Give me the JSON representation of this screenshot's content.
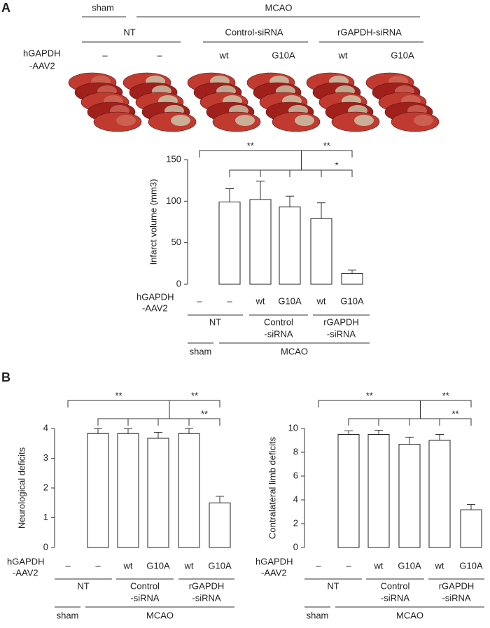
{
  "panels": [
    "A",
    "B"
  ],
  "header": {
    "treatment": [
      "sham",
      "MCAO"
    ],
    "groups": [
      "NT",
      "Control-siRNA",
      "rGAPDH-siRNA"
    ],
    "row_label": [
      "hGAPDH",
      "-AAV2"
    ],
    "conditions": [
      "–",
      "–",
      "wt",
      "G10A",
      "wt",
      "G10A"
    ]
  },
  "chart_data": [
    {
      "type": "bar",
      "y_label": "Infarct volume (mm3)",
      "categories": [
        "–",
        "–",
        "wt",
        "G10A",
        "wt",
        "G10A"
      ],
      "values": [
        0,
        99,
        102,
        93,
        79,
        13
      ],
      "errors": [
        0,
        16,
        22,
        13,
        19,
        4
      ],
      "ylim": [
        0,
        150
      ],
      "yticks": [
        0,
        50,
        100,
        150
      ],
      "color": "#ffffff",
      "annotations": [
        "**",
        "**",
        "*"
      ],
      "row_label": [
        "hGAPDH",
        "-AAV2"
      ],
      "groups": [
        [
          "NT"
        ],
        [
          "Control",
          "-siRNA"
        ],
        [
          "rGAPDH",
          "-siRNA"
        ]
      ],
      "treatment": [
        "sham",
        "MCAO"
      ]
    },
    {
      "type": "bar",
      "y_label": "Neurological deficits",
      "categories": [
        "–",
        "–",
        "wt",
        "G10A",
        "wt",
        "G10A"
      ],
      "values": [
        0,
        3.83,
        3.83,
        3.67,
        3.83,
        1.5
      ],
      "errors": [
        0,
        0.17,
        0.17,
        0.2,
        0.17,
        0.22
      ],
      "ylim": [
        0,
        4
      ],
      "yticks": [
        0,
        1,
        2,
        3,
        4
      ],
      "color": "#ffffff",
      "annotations": [
        "**",
        "**",
        "**"
      ],
      "row_label": [
        "hGAPDH",
        "-AAV2"
      ],
      "groups": [
        [
          "NT"
        ],
        [
          "Control",
          "-siRNA"
        ],
        [
          "rGAPDH",
          "-siRNA"
        ]
      ],
      "treatment": [
        "sham",
        "MCAO"
      ]
    },
    {
      "type": "bar",
      "y_label": "Contralateral limb deficits",
      "categories": [
        "–",
        "–",
        "wt",
        "G10A",
        "wt",
        "G10A"
      ],
      "values": [
        0,
        9.5,
        9.5,
        8.67,
        9.0,
        3.17
      ],
      "errors": [
        0,
        0.3,
        0.35,
        0.6,
        0.5,
        0.45
      ],
      "ylim": [
        0,
        10
      ],
      "yticks": [
        0,
        2,
        4,
        6,
        8,
        10
      ],
      "color": "#ffffff",
      "annotations": [
        "**",
        "**",
        "**"
      ],
      "row_label": [
        "hGAPDH",
        "-AAV2"
      ],
      "groups": [
        [
          "NT"
        ],
        [
          "Control",
          "-siRNA"
        ],
        [
          "rGAPDH",
          "-siRNA"
        ]
      ],
      "treatment": [
        "sham",
        "MCAO"
      ]
    }
  ]
}
